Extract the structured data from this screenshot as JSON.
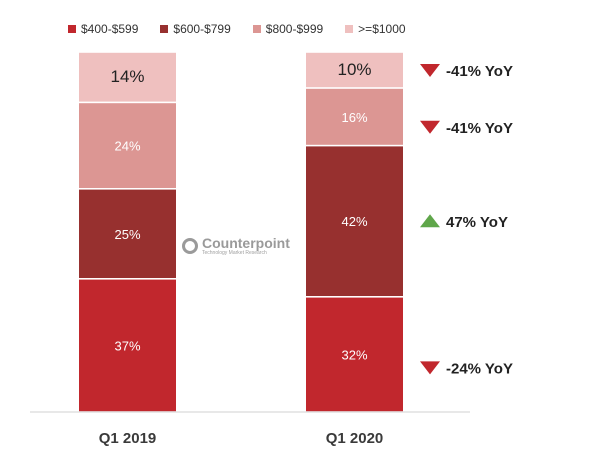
{
  "chart_data": {
    "type": "stacked-bar",
    "categories": [
      "Q1 2019",
      "Q1 2020"
    ],
    "series": [
      {
        "name": "$400-$599",
        "color": "#c1272d",
        "values": [
          37,
          32
        ],
        "labels": [
          "37%",
          "32%"
        ]
      },
      {
        "name": "$600-$799",
        "color": "#97302f",
        "values": [
          25,
          42
        ],
        "labels": [
          "25%",
          "42%"
        ]
      },
      {
        "name": "$800-$999",
        "color": "#dc9693",
        "values": [
          24,
          16
        ],
        "labels": [
          "24%",
          "16%"
        ]
      },
      {
        "name": ">=$1000",
        "color": "#efc0bf",
        "values": [
          14,
          10
        ],
        "labels": [
          "14%",
          "10%"
        ]
      }
    ],
    "yoy": [
      {
        "series": ">=$1000",
        "direction": "down",
        "label": "-41% YoY"
      },
      {
        "series": "$800-$999",
        "direction": "down",
        "label": "-41% YoY"
      },
      {
        "series": "$600-$799",
        "direction": "up",
        "label": "47% YoY"
      },
      {
        "series": "$400-$599",
        "direction": "down",
        "label": "-24% YoY"
      }
    ],
    "legend_position": "top",
    "grid": false
  },
  "watermark": {
    "title": "Counterpoint",
    "subtitle": "Technology Market Research"
  },
  "colors": {
    "down_arrow": "#c1272d",
    "up_arrow": "#5fa64a",
    "axis": "#d0d0d0"
  }
}
